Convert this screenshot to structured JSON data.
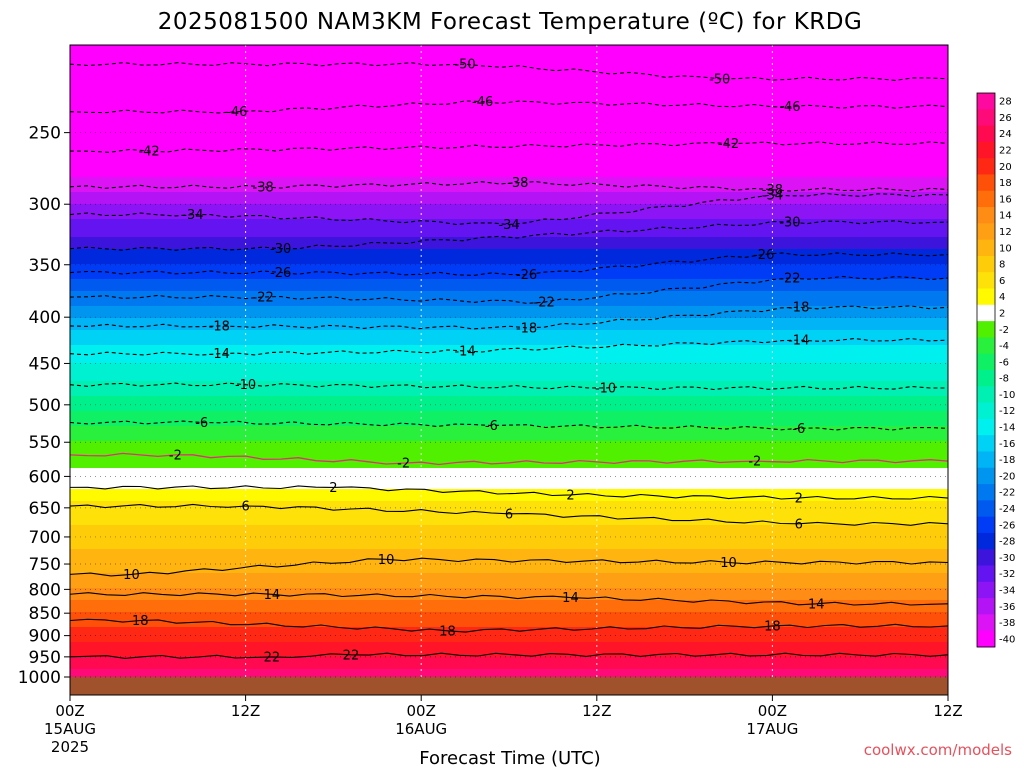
{
  "chart_data": {
    "type": "heatmap",
    "title": "2025081500 NAM3KM Forecast Temperature (ºC) for KRDG",
    "xlabel": "Forecast Time (UTC)",
    "ylabel": "",
    "credit": "coolwx.com/models",
    "x_ticks": [
      {
        "hours": 0,
        "line1": "00Z",
        "line2": "15AUG",
        "line3": "2025"
      },
      {
        "hours": 12,
        "line1": "12Z",
        "line2": "",
        "line3": ""
      },
      {
        "hours": 24,
        "line1": "00Z",
        "line2": "16AUG",
        "line3": ""
      },
      {
        "hours": 36,
        "line1": "12Z",
        "line2": "",
        "line3": ""
      },
      {
        "hours": 48,
        "line1": "00Z",
        "line2": "17AUG",
        "line3": ""
      },
      {
        "hours": 60,
        "line1": "12Z",
        "line2": "",
        "line3": ""
      }
    ],
    "x_range_hours": [
      0,
      60
    ],
    "y_axis": "pressure_hPa_log",
    "y_range": [
      1000,
      200
    ],
    "y_ticks": [
      250,
      300,
      350,
      400,
      450,
      500,
      550,
      600,
      650,
      700,
      750,
      800,
      850,
      900,
      950,
      1000
    ],
    "grid": true,
    "colorbar": {
      "labels": [
        "28",
        "26",
        "24",
        "22",
        "20",
        "18",
        "16",
        "14",
        "12",
        "10",
        "8",
        "6",
        "4",
        "2",
        "-2",
        "-4",
        "-6",
        "-8",
        "-10",
        "-12",
        "-14",
        "-16",
        "-18",
        "-20",
        "-22",
        "-24",
        "-26",
        "-28",
        "-30",
        "-32",
        "-34",
        "-36",
        "-38",
        "-40"
      ],
      "colors": [
        "#ff0aa0",
        "#ff0a78",
        "#ff0a50",
        "#ff1428",
        "#ff2814",
        "#ff500a",
        "#ff6e0a",
        "#ff8c14",
        "#ffa014",
        "#ffb40f",
        "#ffcc0a",
        "#ffe10a",
        "#fffa00",
        "#ffffff",
        "#50f000",
        "#28f03c",
        "#0ff064",
        "#00f08c",
        "#00f0b4",
        "#00f0d2",
        "#00f0f0",
        "#00d2f5",
        "#00b4f5",
        "#0096f0",
        "#0078f0",
        "#005af0",
        "#003cf5",
        "#0028dc",
        "#3c14dc",
        "#6414f0",
        "#8c14f5",
        "#b414f5",
        "#dc14f5",
        "#ff00ff"
      ]
    },
    "contours": [
      {
        "level": -50,
        "labels": [
          {
            "x": 0.45,
            "p": 210
          },
          {
            "x": 0.74,
            "p": 218
          }
        ]
      },
      {
        "level": -46,
        "labels": [
          {
            "x": 0.19,
            "p": 237
          },
          {
            "x": 0.47,
            "p": 231
          },
          {
            "x": 0.82,
            "p": 234
          }
        ]
      },
      {
        "level": -42,
        "labels": [
          {
            "x": 0.09,
            "p": 262
          },
          {
            "x": 0.75,
            "p": 257
          }
        ]
      },
      {
        "level": -38,
        "labels": [
          {
            "x": 0.22,
            "p": 287
          },
          {
            "x": 0.51,
            "p": 284
          },
          {
            "x": 0.8,
            "p": 289
          }
        ]
      },
      {
        "level": -34,
        "labels": [
          {
            "x": 0.14,
            "p": 308
          },
          {
            "x": 0.5,
            "p": 316
          },
          {
            "x": 0.8,
            "p": 293
          }
        ]
      },
      {
        "level": -30,
        "labels": [
          {
            "x": 0.24,
            "p": 336
          },
          {
            "x": 0.82,
            "p": 314
          }
        ]
      },
      {
        "level": -26,
        "labels": [
          {
            "x": 0.24,
            "p": 357
          },
          {
            "x": 0.52,
            "p": 359
          },
          {
            "x": 0.79,
            "p": 341
          }
        ]
      },
      {
        "level": -22,
        "labels": [
          {
            "x": 0.22,
            "p": 380
          },
          {
            "x": 0.54,
            "p": 385
          },
          {
            "x": 0.82,
            "p": 362
          }
        ]
      },
      {
        "level": -18,
        "labels": [
          {
            "x": 0.17,
            "p": 409
          },
          {
            "x": 0.52,
            "p": 411
          },
          {
            "x": 0.83,
            "p": 390
          }
        ]
      },
      {
        "level": -14,
        "labels": [
          {
            "x": 0.17,
            "p": 439
          },
          {
            "x": 0.45,
            "p": 436
          },
          {
            "x": 0.83,
            "p": 424
          }
        ]
      },
      {
        "level": -10,
        "labels": [
          {
            "x": 0.2,
            "p": 475
          },
          {
            "x": 0.61,
            "p": 479
          }
        ]
      },
      {
        "level": -6,
        "labels": [
          {
            "x": 0.15,
            "p": 523
          },
          {
            "x": 0.48,
            "p": 527
          },
          {
            "x": 0.83,
            "p": 531
          }
        ]
      },
      {
        "level": -2,
        "labels": [
          {
            "x": 0.12,
            "p": 568
          },
          {
            "x": 0.38,
            "p": 580
          },
          {
            "x": 0.78,
            "p": 577
          }
        ]
      },
      {
        "level": 2,
        "labels": [
          {
            "x": 0.3,
            "p": 617
          },
          {
            "x": 0.57,
            "p": 629
          },
          {
            "x": 0.83,
            "p": 634
          }
        ]
      },
      {
        "level": 6,
        "labels": [
          {
            "x": 0.2,
            "p": 647
          },
          {
            "x": 0.5,
            "p": 660
          },
          {
            "x": 0.83,
            "p": 677
          }
        ]
      },
      {
        "level": 10,
        "labels": [
          {
            "x": 0.07,
            "p": 770
          },
          {
            "x": 0.36,
            "p": 741
          },
          {
            "x": 0.75,
            "p": 747
          }
        ]
      },
      {
        "level": 14,
        "labels": [
          {
            "x": 0.23,
            "p": 810
          },
          {
            "x": 0.57,
            "p": 817
          },
          {
            "x": 0.85,
            "p": 830
          }
        ]
      },
      {
        "level": 18,
        "labels": [
          {
            "x": 0.08,
            "p": 866
          },
          {
            "x": 0.43,
            "p": 889
          },
          {
            "x": 0.8,
            "p": 878
          }
        ]
      },
      {
        "level": 22,
        "labels": [
          {
            "x": 0.23,
            "p": 950
          },
          {
            "x": 0.32,
            "p": 945
          }
        ]
      }
    ]
  }
}
